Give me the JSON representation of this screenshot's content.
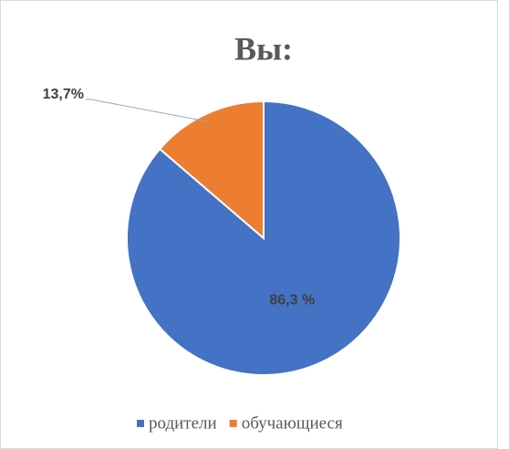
{
  "chart_data": {
    "type": "pie",
    "title": "Вы:",
    "categories": [
      "родители",
      "обучающиеся"
    ],
    "values": [
      86.3,
      13.7
    ],
    "value_labels": [
      "86,3 %",
      "13,7%"
    ],
    "colors": [
      "#4472c4",
      "#ed7d31"
    ],
    "legend": "bottom"
  }
}
